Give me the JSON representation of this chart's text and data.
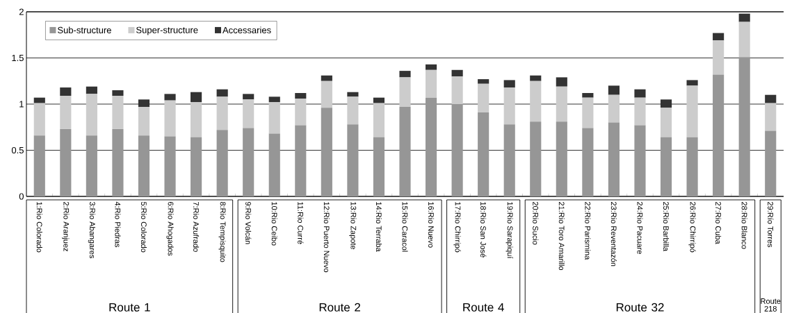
{
  "chart_data": {
    "type": "bar",
    "stacked": true,
    "categories": [
      "1:Rio Colorado",
      "2:Rio Aranjuez",
      "3:Rio Abangares",
      "4:Rio Piedras",
      "5:Rio Colorado",
      "6:Rio Ahogados",
      "7:Rio Azufrado",
      "8:Rio Tempisquito",
      "9:Rio Volcán",
      "10:Rio Ceibo",
      "11:Rio Curré",
      "12:Rio Puerto Nuevo",
      "13:Rio Zapote",
      "14:Rio Terraba",
      "15:Rio Caracol",
      "16:Rio Nuevo",
      "17:Rio Chirripó",
      "18:Rio San José",
      "19:Rio Sarapiquí",
      "20:Rio Sucio",
      "21:Rio Toro Amarillo",
      "22:Rio Parismina",
      "23:Rio Reventazón",
      "24:Rio Pacuare",
      "25:Rio Barbilla",
      "26:Rio Chirripó",
      "27:Rio Cuba",
      "28:Rio Blanco",
      "29:Río Torres"
    ],
    "series": [
      {
        "name": "Sub-structure",
        "color": "#969696",
        "values": [
          0.66,
          0.73,
          0.66,
          0.73,
          0.66,
          0.65,
          0.64,
          0.72,
          0.74,
          0.68,
          0.77,
          0.96,
          0.78,
          0.64,
          0.97,
          1.07,
          1.0,
          0.91,
          0.78,
          0.81,
          0.81,
          0.74,
          0.8,
          0.77,
          0.64,
          0.64,
          1.32,
          1.51,
          0.71
        ]
      },
      {
        "name": "Super-structure",
        "color": "#cccccc",
        "values": [
          0.35,
          0.36,
          0.45,
          0.36,
          0.31,
          0.39,
          0.38,
          0.36,
          0.31,
          0.34,
          0.29,
          0.29,
          0.3,
          0.37,
          0.32,
          0.3,
          0.3,
          0.31,
          0.4,
          0.44,
          0.38,
          0.33,
          0.3,
          0.3,
          0.32,
          0.56,
          0.37,
          0.38,
          0.3
        ]
      },
      {
        "name": "Accessaries",
        "color": "#333333",
        "values": [
          0.06,
          0.09,
          0.08,
          0.06,
          0.08,
          0.07,
          0.11,
          0.08,
          0.06,
          0.06,
          0.06,
          0.06,
          0.05,
          0.06,
          0.07,
          0.06,
          0.07,
          0.05,
          0.08,
          0.06,
          0.1,
          0.05,
          0.1,
          0.09,
          0.09,
          0.06,
          0.08,
          0.09,
          0.09
        ]
      }
    ],
    "ylim": [
      0,
      2
    ],
    "yticks": [
      0,
      0.5,
      1,
      1.5,
      2
    ],
    "grid": "y",
    "legend": "top left",
    "annotations": [
      "Route 1",
      "Route 2",
      "Route 4",
      "Route 32",
      "Route 218"
    ]
  }
}
